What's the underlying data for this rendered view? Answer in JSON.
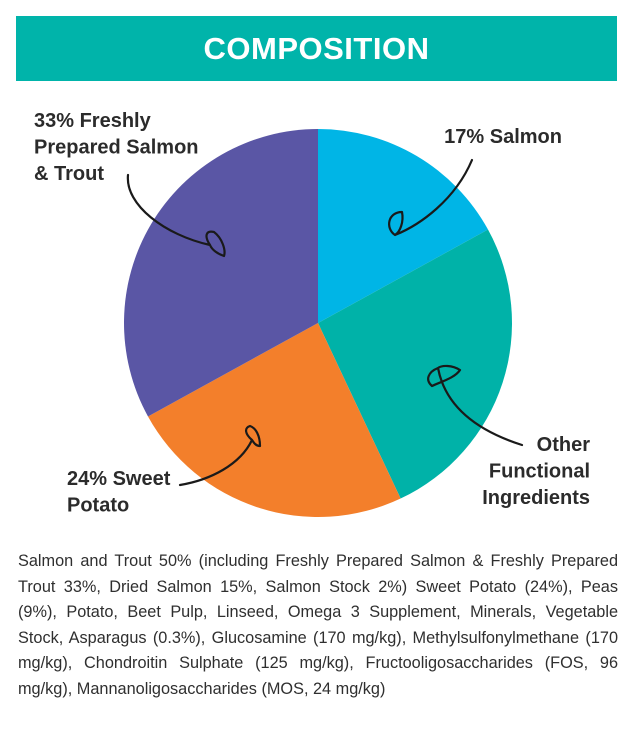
{
  "header": {
    "title": "COMPOSITION"
  },
  "colors": {
    "header_bg": "#00b4aa",
    "slice_salmon": "#00b5e6",
    "slice_other": "#00b2a8",
    "slice_sweet_potato": "#f37f2b",
    "slice_fresh_salmon_trout": "#5a56a5"
  },
  "chart_data": {
    "type": "pie",
    "title": "COMPOSITION",
    "slices": [
      {
        "label": "17% Salmon",
        "label_lines": [
          "17% Salmon"
        ],
        "value": 17,
        "color": "#00b5e6"
      },
      {
        "label": "Other Functional Ingredients",
        "label_lines": [
          "Other",
          "Functional",
          "Ingredients"
        ],
        "value": 26,
        "color": "#00b2a8"
      },
      {
        "label": "24% Sweet Potato",
        "label_lines": [
          "24% Sweet",
          "Potato"
        ],
        "value": 24,
        "color": "#f37f2b"
      },
      {
        "label": "33% Freshly Prepared Salmon & Trout",
        "label_lines": [
          "33% Freshly",
          "Prepared Salmon",
          "& Trout"
        ],
        "value": 33,
        "color": "#5a56a5"
      }
    ],
    "legend": "none"
  },
  "ingredients": {
    "text": "Salmon and Trout 50% (including Freshly Prepared Salmon & Freshly Prepared Trout 33%, Dried Salmon 15%, Salmon Stock 2%) Sweet Potato (24%), Peas (9%), Potato, Beet Pulp, Linseed, Omega 3 Supplement, Minerals, Vegetable Stock, Asparagus (0.3%), Glucosamine (170 mg/kg), Methylsulfonylmethane (170 mg/kg), Chondroitin Sulphate (125 mg/kg), Fructooligosaccharides (FOS, 96 mg/kg), Mannanoligosaccharides (MOS, 24 mg/kg)"
  }
}
